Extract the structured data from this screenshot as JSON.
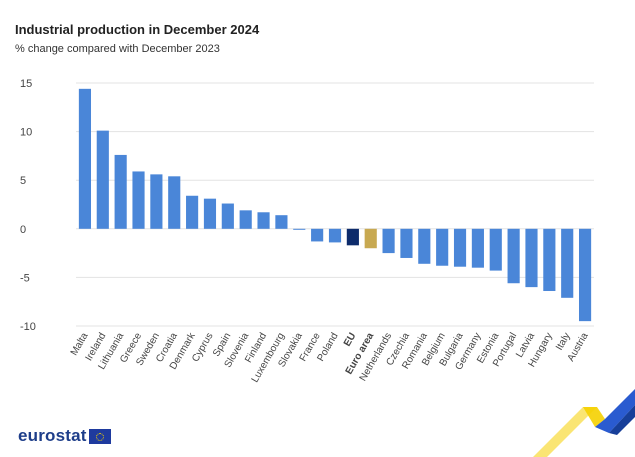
{
  "header": {
    "title": "Industrial production in December 2024",
    "subtitle": "% change compared with December 2023"
  },
  "footer": {
    "logo_text": "eurostat"
  },
  "colors": {
    "default": "#4a86d8",
    "eu": "#0d2b6b",
    "euro_area": "#c8a951",
    "grid": "#e3e3e3",
    "axis_text": "#444444"
  },
  "chart_data": {
    "type": "bar",
    "title": "Industrial production in December 2024",
    "subtitle": "% change compared with December 2023",
    "xlabel": "",
    "ylabel": "",
    "ylim": [
      -10,
      15
    ],
    "yticks": [
      15,
      10,
      5,
      0,
      -5,
      -10
    ],
    "grid": true,
    "categories": [
      "Malta",
      "Ireland",
      "Lithuania",
      "Greece",
      "Sweden",
      "Croatia",
      "Denmark",
      "Cyprus",
      "Spain",
      "Slovenia",
      "Finland",
      "Luxembourg",
      "Slovakia",
      "France",
      "Poland",
      "EU",
      "Euro area",
      "Netherlands",
      "Czechia",
      "Romania",
      "Belgium",
      "Bulgaria",
      "Germany",
      "Estonia",
      "Portugal",
      "Latvia",
      "Hungary",
      "Italy",
      "Austria"
    ],
    "values": [
      14.4,
      10.1,
      7.6,
      5.9,
      5.6,
      5.4,
      3.4,
      3.1,
      2.6,
      1.9,
      1.7,
      1.4,
      -0.1,
      -1.3,
      -1.4,
      -1.7,
      -2.0,
      -2.5,
      -3.0,
      -3.6,
      -3.8,
      -3.9,
      -4.0,
      -4.3,
      -5.6,
      -6.0,
      -6.4,
      -7.1,
      -9.5
    ],
    "highlight": {
      "EU": "eu",
      "Euro area": "euro_area"
    },
    "bold_categories": [
      "EU",
      "Euro area"
    ]
  }
}
